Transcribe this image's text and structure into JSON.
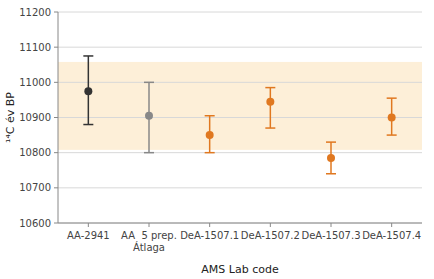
{
  "chart_data": {
    "type": "errorbar",
    "categories": [
      "AA-2941",
      "AA  5 prep.\nÁtlaga",
      "DeA-1507.1",
      "DeA-1507.2",
      "DeA-1507.3",
      "DeA-1507.4"
    ],
    "values": [
      10975,
      10905,
      10850,
      10945,
      10785,
      10900
    ],
    "yerr_lower": [
      95,
      105,
      50,
      75,
      45,
      50
    ],
    "yerr_upper": [
      100,
      95,
      55,
      40,
      45,
      55
    ],
    "colors": [
      "#333333",
      "#888888",
      "#e07820",
      "#e07820",
      "#e07820",
      "#e07820"
    ],
    "band": {
      "ymin": 10808,
      "ymax": 11058,
      "color": "#fdefd8"
    },
    "ylim": [
      10600,
      11200
    ],
    "yticks": [
      10600,
      10700,
      10800,
      10900,
      11000,
      11100,
      11200
    ],
    "ylabel": "¹⁴C év BP",
    "xlabel": "AMS Lab code",
    "grid": true
  }
}
